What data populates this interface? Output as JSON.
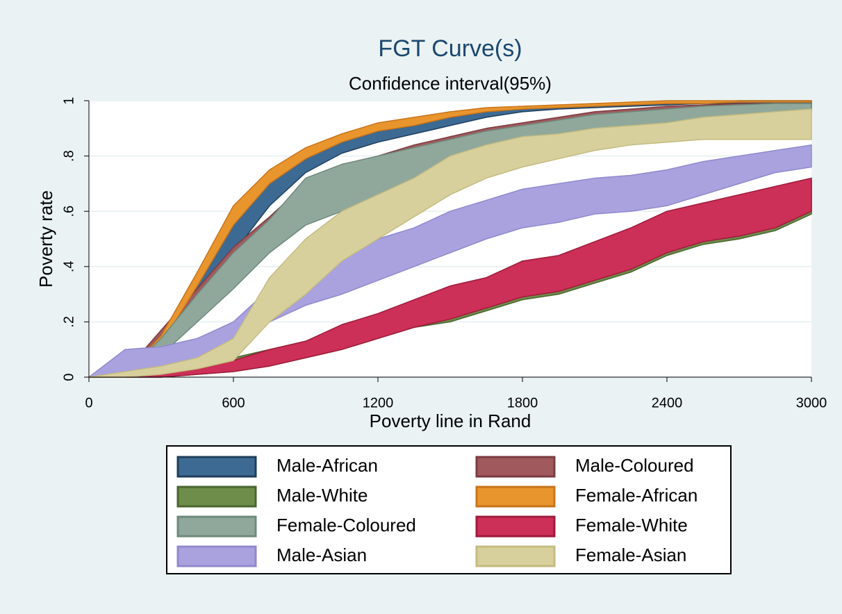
{
  "chart_data": {
    "type": "band",
    "title": "FGT Curve(s)",
    "subtitle": "Confidence interval(95%)",
    "x_label": "Poverty line in Rand",
    "y_label": "Poverty rate",
    "x": [
      0,
      150,
      300,
      450,
      600,
      750,
      900,
      1050,
      1200,
      1350,
      1500,
      1650,
      1800,
      1950,
      2100,
      2250,
      2400,
      2550,
      2700,
      2850,
      3000
    ],
    "xlim": [
      0,
      3000
    ],
    "xticks": [
      0,
      600,
      1200,
      1800,
      2400,
      3000
    ],
    "ylim": [
      0,
      1
    ],
    "yticks": [
      0,
      {
        "value": 0.2,
        "label": ".2"
      },
      {
        "value": 0.4,
        "label": ".4"
      },
      {
        "value": 0.6,
        "label": ".6"
      },
      {
        "value": 0.8,
        "label": ".8"
      },
      1
    ],
    "grid": true,
    "legend": "bottom",
    "series": [
      {
        "name": "Male-African",
        "color": "#3d6a93",
        "stroke": "#1f3e5c",
        "lower": [
          0,
          0,
          0.1,
          0.28,
          0.45,
          0.62,
          0.74,
          0.81,
          0.85,
          0.88,
          0.91,
          0.94,
          0.96,
          0.97,
          0.975,
          0.98,
          0.985,
          0.99,
          0.99,
          0.99,
          0.99
        ],
        "upper": [
          0,
          0.01,
          0.14,
          0.34,
          0.56,
          0.7,
          0.8,
          0.86,
          0.89,
          0.91,
          0.94,
          0.96,
          0.975,
          0.98,
          0.985,
          0.99,
          0.995,
          0.995,
          1,
          1,
          1
        ]
      },
      {
        "name": "Male-Coloured",
        "color": "#a05a5e",
        "stroke": "#7a3c40",
        "lower": [
          0,
          0,
          0.1,
          0.25,
          0.38,
          0.5,
          0.56,
          0.6,
          0.66,
          0.72,
          0.78,
          0.83,
          0.86,
          0.88,
          0.9,
          0.92,
          0.93,
          0.94,
          0.95,
          0.96,
          0.97
        ],
        "upper": [
          0,
          0.02,
          0.17,
          0.32,
          0.47,
          0.58,
          0.7,
          0.76,
          0.8,
          0.84,
          0.87,
          0.9,
          0.92,
          0.94,
          0.96,
          0.97,
          0.98,
          0.985,
          0.99,
          0.99,
          0.99
        ]
      },
      {
        "name": "Male-White",
        "color": "#6e8d4a",
        "stroke": "#4a6630",
        "lower": [
          0,
          0,
          0,
          0.01,
          0.02,
          0.04,
          0.07,
          0.1,
          0.14,
          0.18,
          0.2,
          0.24,
          0.28,
          0.3,
          0.34,
          0.38,
          0.44,
          0.48,
          0.5,
          0.53,
          0.59
        ],
        "upper": [
          0,
          0,
          0.01,
          0.03,
          0.07,
          0.1,
          0.13,
          0.18,
          0.22,
          0.27,
          0.31,
          0.35,
          0.42,
          0.43,
          0.47,
          0.53,
          0.58,
          0.62,
          0.64,
          0.67,
          0.71
        ]
      },
      {
        "name": "Female-African",
        "color": "#e8952e",
        "stroke": "#c7741a",
        "lower": [
          0,
          0,
          0.12,
          0.33,
          0.55,
          0.7,
          0.79,
          0.85,
          0.89,
          0.91,
          0.94,
          0.96,
          0.97,
          0.975,
          0.98,
          0.985,
          0.99,
          0.99,
          0.995,
          0.995,
          0.995
        ],
        "upper": [
          0,
          0.01,
          0.15,
          0.38,
          0.62,
          0.75,
          0.83,
          0.88,
          0.92,
          0.94,
          0.96,
          0.975,
          0.98,
          0.985,
          0.99,
          0.995,
          1,
          1,
          1,
          1,
          1
        ]
      },
      {
        "name": "Female-Coloured",
        "color": "#8fa89b",
        "stroke": "#6f8a7c",
        "lower": [
          0,
          0,
          0.08,
          0.2,
          0.32,
          0.45,
          0.55,
          0.6,
          0.64,
          0.68,
          0.72,
          0.77,
          0.82,
          0.85,
          0.88,
          0.9,
          0.92,
          0.93,
          0.94,
          0.95,
          0.96
        ],
        "upper": [
          0,
          0.01,
          0.14,
          0.3,
          0.45,
          0.57,
          0.72,
          0.77,
          0.8,
          0.83,
          0.86,
          0.89,
          0.91,
          0.93,
          0.95,
          0.96,
          0.97,
          0.98,
          0.985,
          0.99,
          0.99
        ]
      },
      {
        "name": "Female-White",
        "color": "#cc2f57",
        "stroke": "#9e1b3c",
        "lower": [
          0,
          0,
          0,
          0.01,
          0.02,
          0.04,
          0.07,
          0.1,
          0.14,
          0.18,
          0.21,
          0.25,
          0.29,
          0.31,
          0.35,
          0.39,
          0.45,
          0.49,
          0.51,
          0.54,
          0.6
        ],
        "upper": [
          0,
          0,
          0.01,
          0.03,
          0.06,
          0.1,
          0.13,
          0.19,
          0.23,
          0.28,
          0.33,
          0.36,
          0.42,
          0.44,
          0.49,
          0.54,
          0.6,
          0.63,
          0.66,
          0.69,
          0.72
        ]
      },
      {
        "name": "Male-Asian",
        "color": "#a9a2df",
        "stroke": "#9089cc",
        "lower": [
          0,
          0.02,
          0.04,
          0.06,
          0.12,
          0.2,
          0.26,
          0.3,
          0.35,
          0.4,
          0.45,
          0.5,
          0.54,
          0.56,
          0.59,
          0.6,
          0.62,
          0.66,
          0.7,
          0.74,
          0.76
        ],
        "upper": [
          0,
          0.1,
          0.11,
          0.14,
          0.2,
          0.32,
          0.41,
          0.46,
          0.5,
          0.54,
          0.6,
          0.64,
          0.68,
          0.7,
          0.72,
          0.73,
          0.75,
          0.78,
          0.8,
          0.82,
          0.84
        ]
      },
      {
        "name": "Female-Asian",
        "color": "#d8d09c",
        "stroke": "#c4bb80",
        "lower": [
          0,
          0,
          0.01,
          0.03,
          0.06,
          0.2,
          0.3,
          0.42,
          0.5,
          0.58,
          0.66,
          0.72,
          0.76,
          0.79,
          0.82,
          0.84,
          0.85,
          0.86,
          0.86,
          0.86,
          0.86
        ],
        "upper": [
          0,
          0.02,
          0.04,
          0.07,
          0.14,
          0.36,
          0.5,
          0.6,
          0.66,
          0.72,
          0.8,
          0.84,
          0.87,
          0.88,
          0.9,
          0.91,
          0.92,
          0.94,
          0.95,
          0.96,
          0.97
        ]
      }
    ]
  }
}
